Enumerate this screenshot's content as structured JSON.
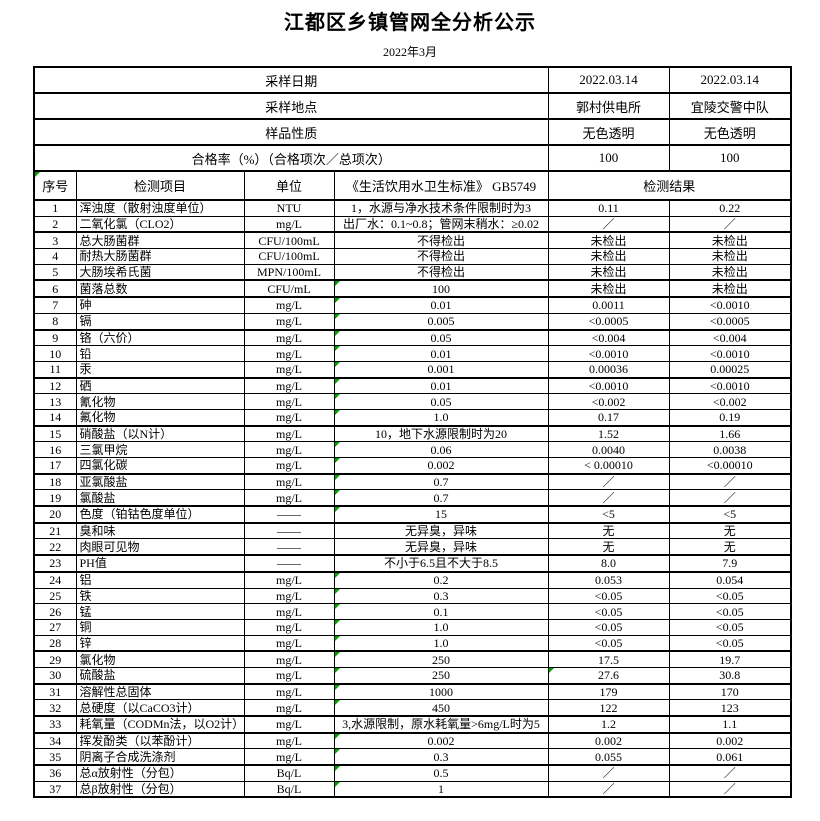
{
  "title": "江都区乡镇管网全分析公示",
  "subtitle": "2022年3月",
  "accent_colors": {
    "border": "#000000",
    "mark_triangle": "#00a000",
    "background": "#ffffff"
  },
  "meta_rows": [
    {
      "label": "采样日期",
      "values": [
        "2022.03.14",
        "2022.03.14"
      ]
    },
    {
      "label": "采样地点",
      "values": [
        "郭村供电所",
        "宜陵交警中队"
      ]
    },
    {
      "label": "样品性质",
      "values": [
        "无色透明",
        "无色透明"
      ]
    },
    {
      "label": "合格率（%）（合格项次／总项次）",
      "values": [
        "100",
        "100"
      ]
    }
  ],
  "columns": {
    "no": "序号",
    "item": "检测项目",
    "unit": "单位",
    "standard": "《生活饮用水卫生标准》 GB5749",
    "result": "检测结果"
  },
  "rows": [
    {
      "no": "1",
      "item": "浑浊度（散射浊度单位）",
      "unit": "NTU",
      "std": "1，水源与净水技术条件限制时为3",
      "r1": "0.11",
      "r2": "0.22"
    },
    {
      "no": "2",
      "item": "二氧化氯（CLO2）",
      "unit": "mg/L",
      "std": "出厂水：0.1~0.8；管网末稍水：≥0.02",
      "r1": "／",
      "r2": "／"
    },
    {
      "no": "3",
      "item": "总大肠菌群",
      "unit": "CFU/100mL",
      "std": "不得检出",
      "r1": "未检出",
      "r2": "未检出"
    },
    {
      "no": "4",
      "item": "耐热大肠菌群",
      "unit": "CFU/100mL",
      "std": "不得检出",
      "r1": "未检出",
      "r2": "未检出"
    },
    {
      "no": "5",
      "item": "大肠埃希氏菌",
      "unit": "MPN/100mL",
      "std": "不得检出",
      "r1": "未检出",
      "r2": "未检出"
    },
    {
      "no": "6",
      "item": "菌落总数",
      "unit": "CFU/mL",
      "std": "100",
      "r1": "未检出",
      "r2": "未检出",
      "std_mark": true
    },
    {
      "no": "7",
      "item": "砷",
      "unit": "mg/L",
      "std": "0.01",
      "r1": "0.0011",
      "r2": "<0.0010",
      "std_mark": true
    },
    {
      "no": "8",
      "item": "镉",
      "unit": "mg/L",
      "std": "0.005",
      "r1": "<0.0005",
      "r2": "<0.0005",
      "std_mark": true
    },
    {
      "no": "9",
      "item": "铬（六价）",
      "unit": "mg/L",
      "std": "0.05",
      "r1": "<0.004",
      "r2": "<0.004",
      "std_mark": true
    },
    {
      "no": "10",
      "item": "铅",
      "unit": "mg/L",
      "std": "0.01",
      "r1": "<0.0010",
      "r2": "<0.0010",
      "std_mark": true
    },
    {
      "no": "11",
      "item": "汞",
      "unit": "mg/L",
      "std": "0.001",
      "r1": "0.00036",
      "r2": "0.00025",
      "std_mark": true
    },
    {
      "no": "12",
      "item": "硒",
      "unit": "mg/L",
      "std": "0.01",
      "r1": "<0.0010",
      "r2": "<0.0010",
      "std_mark": true
    },
    {
      "no": "13",
      "item": "氰化物",
      "unit": "mg/L",
      "std": "0.05",
      "r1": "<0.002",
      "r2": "<0.002",
      "std_mark": true
    },
    {
      "no": "14",
      "item": "氟化物",
      "unit": "mg/L",
      "std": "1.0",
      "r1": "0.17",
      "r2": "0.19",
      "std_mark": true
    },
    {
      "no": "15",
      "item": "硝酸盐（以N计）",
      "unit": "mg/L",
      "std": "10，地下水源限制时为20",
      "r1": "1.52",
      "r2": "1.66"
    },
    {
      "no": "16",
      "item": "三氯甲烷",
      "unit": "mg/L",
      "std": "0.06",
      "r1": "0.0040",
      "r2": "0.0038",
      "std_mark": true
    },
    {
      "no": "17",
      "item": "四氯化碳",
      "unit": "mg/L",
      "std": "0.002",
      "r1": "< 0.00010",
      "r2": "<0.00010",
      "std_mark": true
    },
    {
      "no": "18",
      "item": "亚氯酸盐",
      "unit": "mg/L",
      "std": "0.7",
      "r1": "／",
      "r2": "／",
      "std_mark": true
    },
    {
      "no": "19",
      "item": "氯酸盐",
      "unit": "mg/L",
      "std": "0.7",
      "r1": "／",
      "r2": "／",
      "std_mark": true
    },
    {
      "no": "20",
      "item": "色度（铂钴色度单位）",
      "unit": "——",
      "std": "15",
      "r1": "<5",
      "r2": "<5",
      "std_mark": true
    },
    {
      "no": "21",
      "item": "臭和味",
      "unit": "——",
      "std": "无异臭，异味",
      "r1": "无",
      "r2": "无"
    },
    {
      "no": "22",
      "item": "肉眼可见物",
      "unit": "——",
      "std": "无异臭，异味",
      "r1": "无",
      "r2": "无"
    },
    {
      "no": "23",
      "item": "PH值",
      "unit": "——",
      "std": "不小于6.5且不大于8.5",
      "r1": "8.0",
      "r2": "7.9"
    },
    {
      "no": "24",
      "item": "铝",
      "unit": "mg/L",
      "std": "0.2",
      "r1": "0.053",
      "r2": "0.054",
      "std_mark": true
    },
    {
      "no": "25",
      "item": "铁",
      "unit": "mg/L",
      "std": "0.3",
      "r1": "<0.05",
      "r2": "<0.05",
      "std_mark": true
    },
    {
      "no": "26",
      "item": "锰",
      "unit": "mg/L",
      "std": "0.1",
      "r1": "<0.05",
      "r2": "<0.05",
      "std_mark": true
    },
    {
      "no": "27",
      "item": "铜",
      "unit": "mg/L",
      "std": "1.0",
      "r1": "<0.05",
      "r2": "<0.05",
      "std_mark": true
    },
    {
      "no": "28",
      "item": "锌",
      "unit": "mg/L",
      "std": "1.0",
      "r1": "<0.05",
      "r2": "<0.05",
      "std_mark": true
    },
    {
      "no": "29",
      "item": "氯化物",
      "unit": "mg/L",
      "std": "250",
      "r1": "17.5",
      "r2": "19.7",
      "std_mark": true
    },
    {
      "no": "30",
      "item": "硫酸盐",
      "unit": "mg/L",
      "std": "250",
      "r1": "27.6",
      "r2": "30.8",
      "std_mark": true,
      "r1_mark": true
    },
    {
      "no": "31",
      "item": "溶解性总固体",
      "unit": "mg/L",
      "std": "1000",
      "r1": "179",
      "r2": "170",
      "std_mark": true
    },
    {
      "no": "32",
      "item": "总硬度（以CaCO3计）",
      "unit": "mg/L",
      "std": "450",
      "r1": "122",
      "r2": "123",
      "std_mark": true
    },
    {
      "no": "33",
      "item": "耗氧量（CODMn法，以O2计）",
      "unit": "mg/L",
      "std": "3,水源限制，原水耗氧量>6mg/L时为5",
      "r1": "1.2",
      "r2": "1.1"
    },
    {
      "no": "34",
      "item": "挥发酚类（以苯酚计）",
      "unit": "mg/L",
      "std": "0.002",
      "r1": "0.002",
      "r2": "0.002",
      "std_mark": true
    },
    {
      "no": "35",
      "item": "阴离子合成洗涤剂",
      "unit": "mg/L",
      "std": "0.3",
      "r1": "0.055",
      "r2": "0.061",
      "std_mark": true
    },
    {
      "no": "36",
      "item": "总α放射性（分包）",
      "unit": "Bq/L",
      "std": "0.5",
      "r1": "／",
      "r2": "／",
      "std_mark": true
    },
    {
      "no": "37",
      "item": "总β放射性（分包）",
      "unit": "Bq/L",
      "std": "1",
      "r1": "／",
      "r2": "／",
      "std_mark": true
    }
  ]
}
